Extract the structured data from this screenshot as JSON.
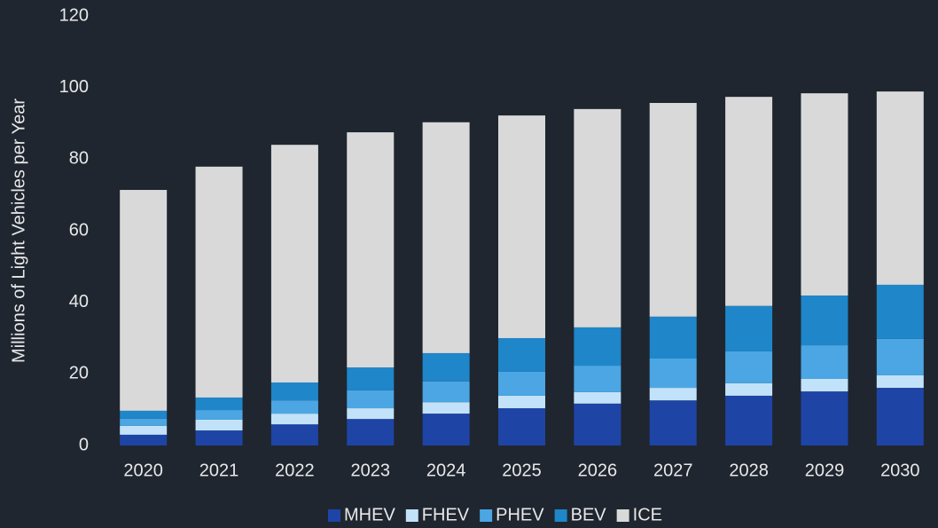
{
  "chart_data": {
    "type": "stacked_bar",
    "y_axis_label": "Millions of Light Vehicles per Year",
    "categories": [
      "2020",
      "2021",
      "2022",
      "2023",
      "2024",
      "2025",
      "2026",
      "2027",
      "2028",
      "2029",
      "2030"
    ],
    "series": [
      {
        "name": "MHEV",
        "color": "#1e44a6",
        "values": [
          3.0,
          4.2,
          5.9,
          7.4,
          8.9,
          10.4,
          11.7,
          12.6,
          13.9,
          15.1,
          16.1
        ]
      },
      {
        "name": "FHEV",
        "color": "#c2e2f9",
        "values": [
          2.5,
          3.0,
          3.0,
          3.0,
          3.2,
          3.5,
          3.2,
          3.5,
          3.5,
          3.5,
          3.5
        ]
      },
      {
        "name": "PHEV",
        "color": "#4ba6e3",
        "values": [
          2.0,
          2.7,
          3.7,
          5.0,
          5.8,
          6.7,
          7.4,
          8.2,
          8.9,
          9.4,
          10.2
        ]
      },
      {
        "name": "BEV",
        "color": "#1f86c9",
        "values": [
          2.2,
          3.5,
          5.0,
          6.4,
          7.9,
          9.4,
          10.7,
          11.7,
          12.7,
          13.9,
          15.1
        ]
      },
      {
        "name": "ICE",
        "color": "#d9d9d9",
        "values": [
          61.7,
          64.5,
          66.4,
          65.7,
          64.5,
          62.2,
          61.0,
          59.7,
          58.4,
          56.5,
          54.0
        ]
      }
    ],
    "ylim": [
      0,
      120
    ],
    "yticks": [
      0,
      20,
      40,
      60,
      80,
      100,
      120
    ],
    "grid": false,
    "legend": "bottom"
  }
}
